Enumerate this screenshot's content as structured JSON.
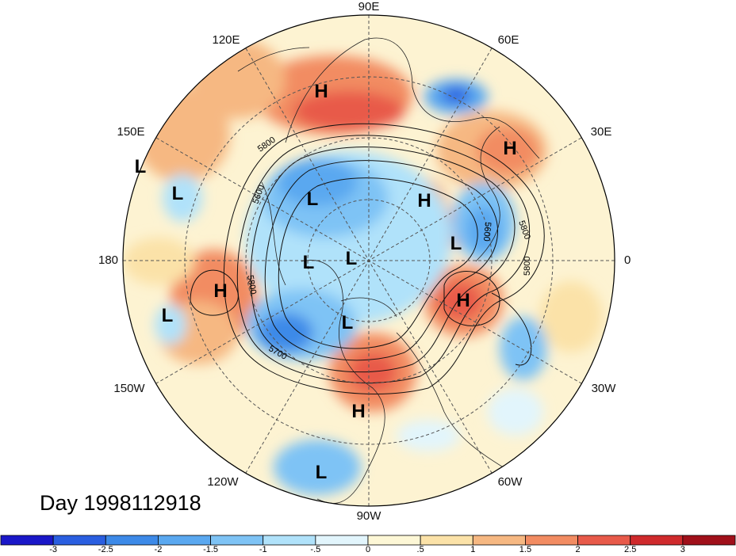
{
  "title": "Day 1998112918",
  "longitude_labels": {
    "n90e": "90E",
    "n120e": "120E",
    "n60e": "60E",
    "n150e": "150E",
    "n30e": "30E",
    "n180": "180",
    "n0": "0",
    "n150w": "150W",
    "n30w": "30W",
    "n120w": "120W",
    "n60w": "60W",
    "n90w": "90W"
  },
  "pressure_centers": [
    {
      "type": "H"
    },
    {
      "type": "H"
    },
    {
      "type": "L"
    },
    {
      "type": "L"
    },
    {
      "type": "L"
    },
    {
      "type": "H"
    },
    {
      "type": "L"
    },
    {
      "type": "L"
    },
    {
      "type": "L"
    },
    {
      "type": "H"
    },
    {
      "type": "H"
    },
    {
      "type": "L"
    },
    {
      "type": "L"
    },
    {
      "type": "H"
    },
    {
      "type": "L"
    }
  ],
  "contour_labels": [
    "5800",
    "5600",
    "5800",
    "5700",
    "5600",
    "5800",
    "5800"
  ],
  "colorbar": {
    "ticks": [
      "-3",
      "-2.5",
      "-2",
      "-1.5",
      "-1",
      "-.5",
      "0",
      ".5",
      "1",
      "1.5",
      "2",
      "2.5",
      "3"
    ],
    "colors": [
      "#1a17c8",
      "#2a5ee0",
      "#3d8ae8",
      "#5aa8f0",
      "#7ec3f5",
      "#b0e2fa",
      "#e2f5fc",
      "#fdf7d6",
      "#fbe2a8",
      "#f6b882",
      "#f28c62",
      "#e85a4a",
      "#cf2a2c",
      "#a0101a"
    ]
  }
}
